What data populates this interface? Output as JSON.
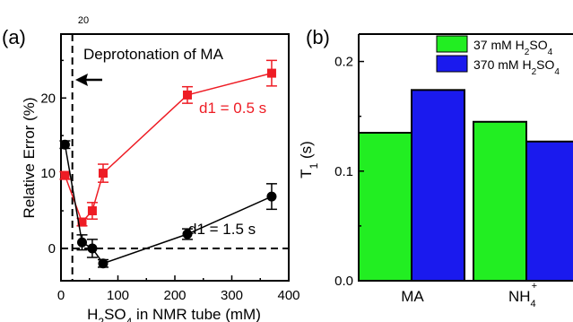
{
  "panel_a": {
    "label": "(a)",
    "annotation_top": "20",
    "annotation_text": "Deprotonation of MA",
    "label_red": "d1 = 0.5 s",
    "label_black": "d1 = 1.5 s",
    "colors": {
      "red": "#ee1c24",
      "black": "#000000"
    }
  },
  "panel_b": {
    "label": "(b)",
    "legend": [
      {
        "pre": "37 mM H",
        "sub": "2",
        "mid": "SO",
        "sub2": "4",
        "color": "#22ee22"
      },
      {
        "pre": "370 mM H",
        "sub": "2",
        "mid": "SO",
        "sub2": "4",
        "color": "#1a1aee"
      }
    ],
    "ylabel": {
      "main": "T",
      "sub": "1",
      "rest": " (s)"
    },
    "xtick_ma": "MA",
    "xtick_nh4": {
      "main": "NH",
      "sub": "4",
      "sup": "+"
    }
  },
  "chart_data": [
    {
      "type": "scatter",
      "title": "",
      "xlabel": "H2SO4 in NMR tube (mM)",
      "ylabel": "Relative Error (%)",
      "xlim": [
        0,
        400
      ],
      "ylim": [
        -4.3,
        28.5
      ],
      "xticks": [
        0,
        100,
        200,
        300,
        400
      ],
      "yticks": [
        0,
        10,
        20
      ],
      "xticklabels": [
        "0",
        "100",
        "200",
        "300",
        "400"
      ],
      "yticklabels": [
        "0",
        "10",
        "20"
      ],
      "reference_lines": {
        "horizontal": 0,
        "vertical": 20
      },
      "series": [
        {
          "name": "d1 = 0.5 s",
          "color": "#ee1c24",
          "marker": "square",
          "x": [
            7,
            37,
            55,
            74,
            222,
            370
          ],
          "y": [
            9.7,
            3.5,
            5.0,
            10.0,
            20.4,
            23.3
          ],
          "err": [
            0.5,
            0.5,
            1.1,
            1.2,
            1.1,
            1.7
          ]
        },
        {
          "name": "d1 = 1.5 s",
          "color": "#000000",
          "marker": "circle",
          "x": [
            7,
            37,
            55,
            74,
            222,
            370
          ],
          "y": [
            13.8,
            0.8,
            0.0,
            -2.0,
            1.9,
            6.9
          ],
          "err": [
            0.5,
            1.0,
            1.2,
            0.5,
            0.7,
            1.7
          ]
        }
      ]
    },
    {
      "type": "bar",
      "title": "",
      "xlabel": "",
      "ylabel": "T1 (s)",
      "ylim": [
        0.0,
        0.225
      ],
      "yticks": [
        0.0,
        0.1,
        0.2
      ],
      "yticklabels": [
        "0.0",
        "0.1",
        "0.2"
      ],
      "categories": [
        "MA",
        "NH4+"
      ],
      "series": [
        {
          "name": "37 mM H2SO4",
          "color": "#22ee22",
          "values": [
            0.135,
            0.145
          ]
        },
        {
          "name": "370 mM H2SO4",
          "color": "#1a1aee",
          "values": [
            0.174,
            0.127
          ]
        }
      ]
    }
  ]
}
